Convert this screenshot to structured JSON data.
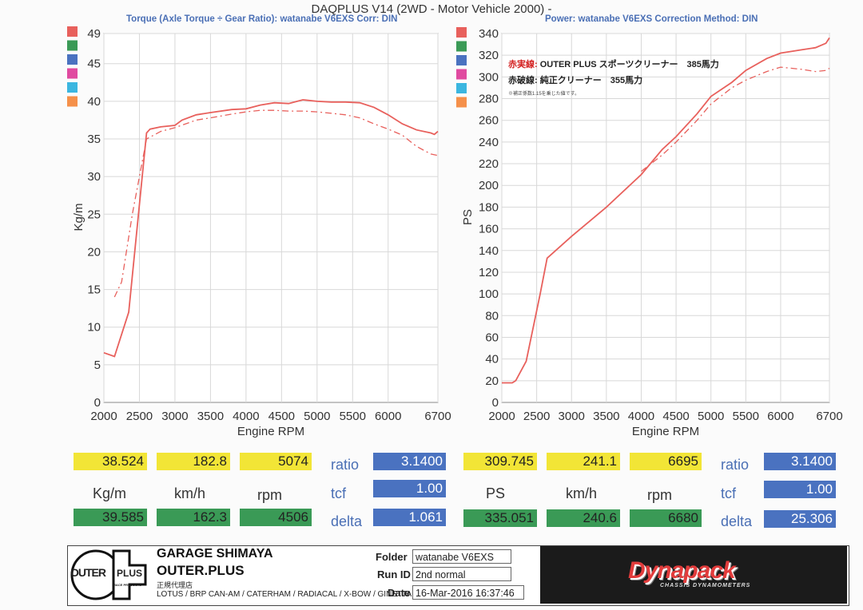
{
  "header": {
    "title": "DAQPLUS V14 (2WD - Motor Vehicle 2000) -",
    "left_subtitle": "Torque (Axle Torque ÷ Gear Ratio): watanabe V6EXS     Corr: DIN",
    "right_subtitle": "Power: watanabe V6EXS     Correction Method: DIN"
  },
  "colors": {
    "solid_line": "#e8605c",
    "swatches": [
      "#e8605c",
      "#3a9a56",
      "#4a72c0",
      "#e04aa0",
      "#3bb6e0",
      "#f5904a"
    ]
  },
  "chart_data": [
    {
      "type": "line",
      "xlabel": "Engine RPM",
      "ylabel": "Kg/m",
      "xticks": [
        2000,
        2500,
        3000,
        3500,
        4000,
        4500,
        5000,
        5500,
        6000,
        6700
      ],
      "yticks": [
        0,
        5,
        10,
        15,
        20,
        25,
        30,
        35,
        40,
        45,
        49
      ],
      "xlim": [
        2000,
        6700
      ],
      "ylim": [
        0,
        49
      ],
      "series": [
        {
          "style": "solid",
          "x": [
            2000,
            2150,
            2350,
            2600,
            2650,
            2800,
            3000,
            3100,
            3300,
            3500,
            3800,
            4000,
            4200,
            4400,
            4600,
            4800,
            5000,
            5200,
            5400,
            5600,
            5800,
            6000,
            6200,
            6400,
            6600,
            6650,
            6700
          ],
          "y": [
            6.6,
            6.1,
            12,
            35.8,
            36.3,
            36.6,
            36.8,
            37.5,
            38.2,
            38.5,
            38.9,
            39.0,
            39.5,
            39.8,
            39.7,
            40.2,
            40.0,
            39.9,
            39.9,
            39.8,
            39.2,
            38.2,
            37.0,
            36.2,
            35.8,
            35.6,
            36.0
          ]
        },
        {
          "style": "dashed",
          "x": [
            2150,
            2250,
            2400,
            2500,
            2600,
            2800,
            3000,
            3300,
            3500,
            3800,
            4000,
            4200,
            4400,
            4600,
            4800,
            5000,
            5200,
            5400,
            5600,
            5800,
            6000,
            6200,
            6400,
            6600,
            6700
          ],
          "y": [
            14,
            16,
            25,
            30,
            35,
            36.0,
            36.5,
            37.5,
            37.8,
            38.3,
            38.6,
            38.8,
            38.8,
            38.7,
            38.7,
            38.6,
            38.4,
            38.2,
            37.8,
            37.0,
            36.3,
            35.5,
            34.0,
            33.0,
            32.8
          ]
        }
      ]
    },
    {
      "type": "line",
      "xlabel": "Engine RPM",
      "ylabel": "PS",
      "xticks": [
        2000,
        2500,
        3000,
        3500,
        4000,
        4500,
        5000,
        5500,
        6000,
        6700
      ],
      "yticks": [
        0,
        20,
        40,
        60,
        80,
        100,
        120,
        140,
        160,
        180,
        200,
        220,
        240,
        260,
        280,
        300,
        320,
        340
      ],
      "xlim": [
        2000,
        6700
      ],
      "ylim": [
        0,
        340
      ],
      "series": [
        {
          "style": "solid",
          "x": [
            2000,
            2150,
            2200,
            2350,
            2550,
            2650,
            3000,
            3500,
            4000,
            4300,
            4500,
            4800,
            5000,
            5300,
            5500,
            5800,
            6000,
            6300,
            6500,
            6650,
            6700
          ],
          "y": [
            18,
            18,
            20,
            38,
            100,
            133,
            153,
            180,
            210,
            233,
            245,
            266,
            282,
            295,
            306,
            317,
            322,
            325,
            327,
            331,
            336
          ]
        },
        {
          "style": "dashed",
          "x": [
            4000,
            4300,
            4500,
            4800,
            5000,
            5300,
            5500,
            5800,
            6000,
            6300,
            6500,
            6650,
            6700
          ],
          "y": [
            213,
            228,
            240,
            260,
            275,
            290,
            297,
            305,
            309,
            307,
            305,
            306,
            308
          ]
        }
      ],
      "annotations": {
        "line1_red": "赤実線:",
        "line1_text": "OUTER PLUS スポーツクリーナー　385馬力",
        "line2_red": "赤破線:",
        "line2_text": "純正クリーナー　355馬力",
        "note": "※補正係数1.15を乗じた値です。"
      }
    }
  ],
  "readouts": {
    "left": {
      "top": [
        "38.524",
        "182.8",
        "5074"
      ],
      "units": [
        "Kg/m",
        "km/h",
        "rpm"
      ],
      "bottom": [
        "39.585",
        "162.3",
        "4506"
      ],
      "ratio_label": "ratio",
      "ratio": "3.1400",
      "tcf_label": "tcf",
      "tcf": "1.00",
      "delta_label": "delta",
      "delta": "1.061"
    },
    "right": {
      "top": [
        "309.745",
        "241.1",
        "6695"
      ],
      "units": [
        "PS",
        "km/h",
        "rpm"
      ],
      "bottom": [
        "335.051",
        "240.6",
        "6680"
      ],
      "ratio_label": "ratio",
      "ratio": "3.1400",
      "tcf_label": "tcf",
      "tcf": "1.00",
      "delta_label": "delta",
      "delta": "25.306"
    }
  },
  "footer": {
    "logo_left": "OUTER",
    "logo_right": "PLUS",
    "logo_small": "RACE PRODUCTS",
    "shop_name": "GARAGE SHIMAYA",
    "shop_brand": "OUTER.PLUS",
    "dealer": "正規代理店",
    "makes": "LOTUS / BRP CAN-AM / CATERHAM / RADIACAL / X-BOW / GINETTA",
    "folder_label": "Folder",
    "folder": "watanabe V6EXS",
    "runid_label": "Run ID",
    "runid": "2nd normal",
    "date_label": "Date",
    "date": "16-Mar-2016 16:37:46",
    "dyna_brand": "Dynapack",
    "dyna_sub": "CHASSIS DYNAMOMETERS"
  }
}
